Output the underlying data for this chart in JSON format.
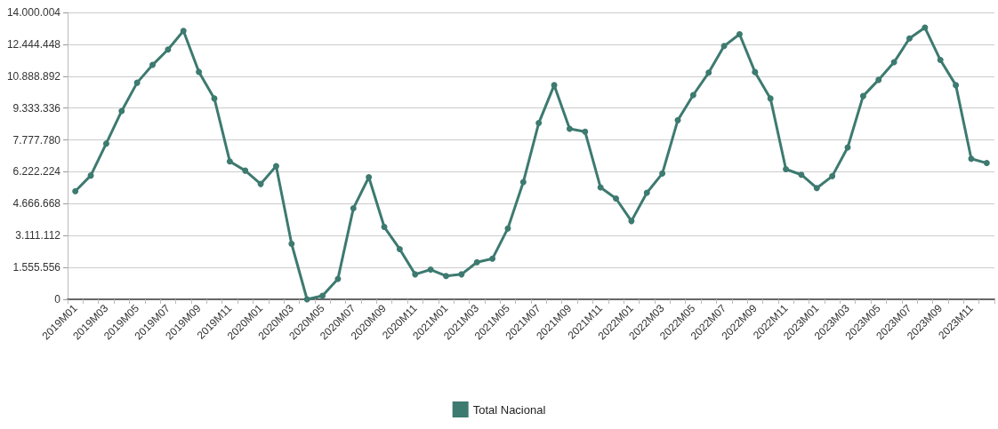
{
  "chart_data": {
    "type": "line",
    "categories": [
      "2019M01",
      null,
      "2019M03",
      null,
      "2019M05",
      null,
      "2019M07",
      null,
      "2019M09",
      null,
      "2019M11",
      null,
      "2020M01",
      null,
      "2020M03",
      null,
      "2020M05",
      null,
      "2020M07",
      null,
      "2020M09",
      null,
      "2020M11",
      null,
      "2021M01",
      null,
      "2021M03",
      null,
      "2021M05",
      null,
      "2021M07",
      null,
      "2021M09",
      null,
      "2021M11",
      null,
      "2022M01",
      null,
      "2022M03",
      null,
      "2022M05",
      null,
      "2022M07",
      null,
      "2022M09",
      null,
      "2022M11",
      null,
      "2023M01",
      null,
      "2023M03",
      null,
      "2023M05",
      null,
      "2023M07",
      null,
      "2023M09",
      null,
      "2023M11",
      null
    ],
    "series": [
      {
        "name": "Total Nacional",
        "color": "#3d7a70",
        "values": [
          5280000,
          6040000,
          7600000,
          9190000,
          10570000,
          11440000,
          12190000,
          13100000,
          11100000,
          9800000,
          6730000,
          6280000,
          5630000,
          6500000,
          2710000,
          0,
          170000,
          1000000,
          4440000,
          5960000,
          3530000,
          2450000,
          1220000,
          1450000,
          1140000,
          1220000,
          1810000,
          1980000,
          3460000,
          5720000,
          8600000,
          10450000,
          8320000,
          8180000,
          5460000,
          4920000,
          3820000,
          5200000,
          6140000,
          8740000,
          9970000,
          11060000,
          12360000,
          12940000,
          11090000,
          9800000,
          6350000,
          6080000,
          5430000,
          6010000,
          7410000,
          9920000,
          10710000,
          11570000,
          12730000,
          13260000,
          11680000,
          10450000,
          6860000,
          6650000
        ]
      }
    ],
    "ylim": [
      0,
      14000004
    ],
    "yticks": [
      {
        "value": 0,
        "label": "0"
      },
      {
        "value": 1555556,
        "label": "1.555.556"
      },
      {
        "value": 3111112,
        "label": "3.111.112"
      },
      {
        "value": 4666668,
        "label": "4.666.668"
      },
      {
        "value": 6222224,
        "label": "6.222.224"
      },
      {
        "value": 7777780,
        "label": "7.777.780"
      },
      {
        "value": 9333336,
        "label": "9.333.336"
      },
      {
        "value": 10888892,
        "label": "10.888.892"
      },
      {
        "value": 12444448,
        "label": "12.444.448"
      },
      {
        "value": 14000004,
        "label": "14.000.004"
      }
    ],
    "grid": "y",
    "legend": "bottom",
    "marker": "circle",
    "line_style": "solid"
  }
}
